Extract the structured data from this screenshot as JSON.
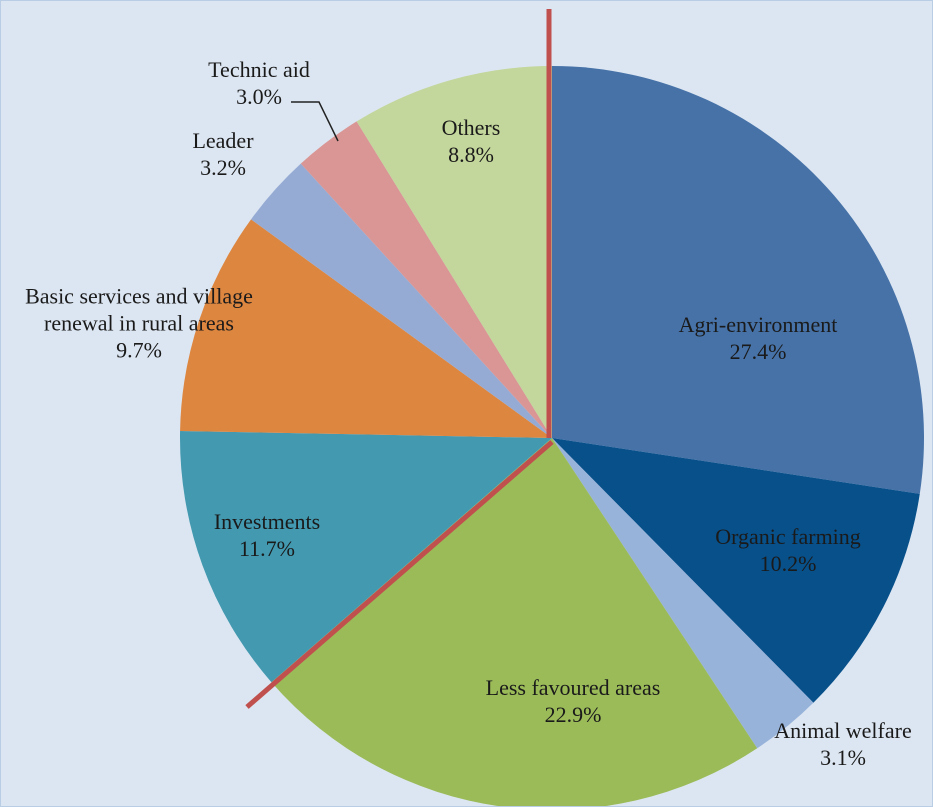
{
  "chart_data": {
    "type": "pie",
    "categories": [
      "Agri-environment",
      "Organic farming",
      "Animal welfare",
      "Less favoured areas",
      "Investments",
      "Basic services and village renewal in rural areas",
      "Leader",
      "Technic aid",
      "Others"
    ],
    "values": [
      27.4,
      10.2,
      3.1,
      22.9,
      11.7,
      9.7,
      3.2,
      3.0,
      8.8
    ],
    "value_labels": [
      "27.4%",
      "10.2%",
      "3.1%",
      "22.9%",
      "11.7%",
      "9.7%",
      "3.2%",
      "3.0%",
      "8.8%"
    ],
    "colors": [
      "#4672a8",
      "#08508a",
      "#97b3da",
      "#9bbb59",
      "#4299b0",
      "#dd8640",
      "#96abd4",
      "#d99694",
      "#c3d69b"
    ]
  }
}
